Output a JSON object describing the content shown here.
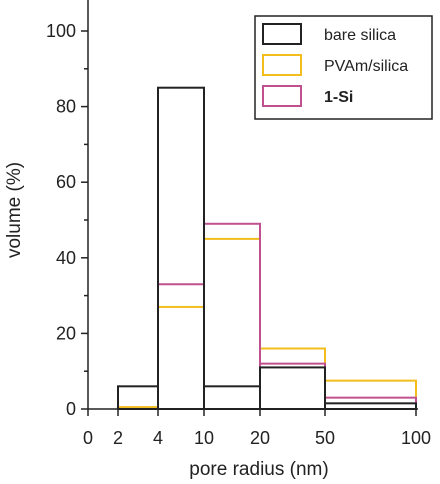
{
  "chart_data": {
    "type": "bar",
    "xlabel": "pore radius (nm)",
    "ylabel": "volume (%)",
    "ylim": [
      0,
      110
    ],
    "x_ticks": [
      "0",
      "2",
      "4",
      "10",
      "20",
      "50",
      "100"
    ],
    "y_ticks": [
      "0",
      "20",
      "40",
      "60",
      "80",
      "100"
    ],
    "bins": [
      "2-4",
      "4-10",
      "10-20",
      "20-50",
      "50-100"
    ],
    "legend_position": "top-right",
    "series": [
      {
        "name": "bare silica",
        "color": "#222222",
        "values": [
          6,
          85,
          6,
          11,
          1.5
        ]
      },
      {
        "name": "PVAm/silica",
        "color": "#f2bd1d",
        "values": [
          0.5,
          27,
          45,
          16,
          7.5
        ]
      },
      {
        "name": "1-Si",
        "color": "#c0508e",
        "values": [
          0,
          33,
          49,
          12,
          3
        ]
      }
    ]
  }
}
